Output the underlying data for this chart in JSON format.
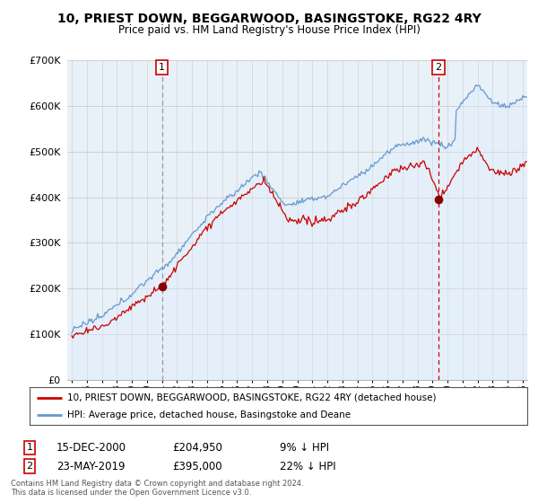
{
  "title": "10, PRIEST DOWN, BEGGARWOOD, BASINGSTOKE, RG22 4RY",
  "subtitle": "Price paid vs. HM Land Registry's House Price Index (HPI)",
  "legend_line1": "10, PRIEST DOWN, BEGGARWOOD, BASINGSTOKE, RG22 4RY (detached house)",
  "legend_line2": "HPI: Average price, detached house, Basingstoke and Deane",
  "footer_line1": "Contains HM Land Registry data © Crown copyright and database right 2024.",
  "footer_line2": "This data is licensed under the Open Government Licence v3.0.",
  "annotation1_label": "1",
  "annotation1_date": "15-DEC-2000",
  "annotation1_price": "£204,950",
  "annotation1_hpi": "9% ↓ HPI",
  "annotation2_label": "2",
  "annotation2_date": "23-MAY-2019",
  "annotation2_price": "£395,000",
  "annotation2_hpi": "22% ↓ HPI",
  "line_property_color": "#cc0000",
  "line_hpi_color": "#6699cc",
  "fill_hpi_color": "#ddeeff",
  "vline1_color": "#999999",
  "vline2_color": "#cc0000",
  "marker_color": "#880000",
  "ylim": [
    0,
    700000
  ],
  "yticks": [
    0,
    100000,
    200000,
    300000,
    400000,
    500000,
    600000,
    700000
  ],
  "sale1_x": 2001.0,
  "sale1_y": 204950,
  "sale2_x": 2019.4,
  "sale2_y": 395000,
  "xmin": 1995.0,
  "xmax": 2025.3,
  "background_color": "#ffffff",
  "plot_bg_color": "#e8f0f8",
  "grid_color": "#cccccc"
}
